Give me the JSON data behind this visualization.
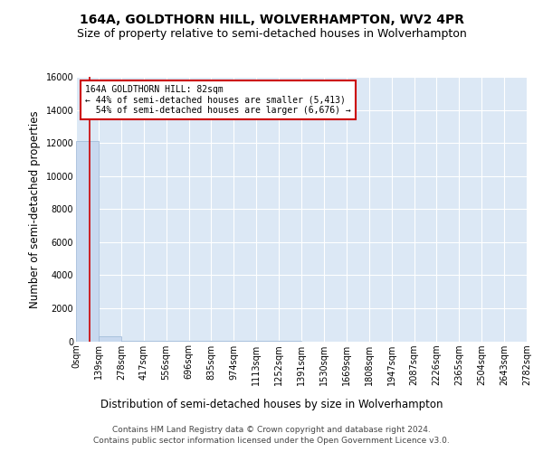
{
  "title": "164A, GOLDTHORN HILL, WOLVERHAMPTON, WV2 4PR",
  "subtitle": "Size of property relative to semi-detached houses in Wolverhampton",
  "xlabel": "Distribution of semi-detached houses by size in Wolverhampton",
  "ylabel": "Number of semi-detached properties",
  "footer_line1": "Contains HM Land Registry data © Crown copyright and database right 2024.",
  "footer_line2": "Contains public sector information licensed under the Open Government Licence v3.0.",
  "bin_edges": [
    0,
    139,
    278,
    417,
    556,
    696,
    835,
    974,
    1113,
    1252,
    1391,
    1530,
    1669,
    1808,
    1947,
    2087,
    2226,
    2365,
    2504,
    2643,
    2782
  ],
  "bin_labels": [
    "0sqm",
    "139sqm",
    "278sqm",
    "417sqm",
    "556sqm",
    "696sqm",
    "835sqm",
    "974sqm",
    "1113sqm",
    "1252sqm",
    "1391sqm",
    "1530sqm",
    "1669sqm",
    "1808sqm",
    "1947sqm",
    "2087sqm",
    "2226sqm",
    "2365sqm",
    "2504sqm",
    "2643sqm",
    "2782sqm"
  ],
  "bar_heights": [
    12089,
    290,
    25,
    10,
    5,
    3,
    2,
    1,
    1,
    1,
    0,
    0,
    0,
    0,
    0,
    0,
    0,
    0,
    0,
    0
  ],
  "bar_color": "#c8d9ef",
  "bar_edge_color": "#9ab5d5",
  "property_size": 82,
  "property_line_color": "#cc0000",
  "annotation_line1": "164A GOLDTHORN HILL: 82sqm",
  "annotation_line2": "← 44% of semi-detached houses are smaller (5,413)",
  "annotation_line3": "  54% of semi-detached houses are larger (6,676) →",
  "annotation_box_color": "#cc0000",
  "ylim": [
    0,
    16000
  ],
  "yticks": [
    0,
    2000,
    4000,
    6000,
    8000,
    10000,
    12000,
    14000,
    16000
  ],
  "fig_background_color": "#ffffff",
  "plot_background_color": "#dce8f5",
  "grid_color": "#ffffff",
  "title_fontsize": 10,
  "subtitle_fontsize": 9,
  "axis_label_fontsize": 8.5,
  "tick_fontsize": 7,
  "footer_fontsize": 6.5
}
